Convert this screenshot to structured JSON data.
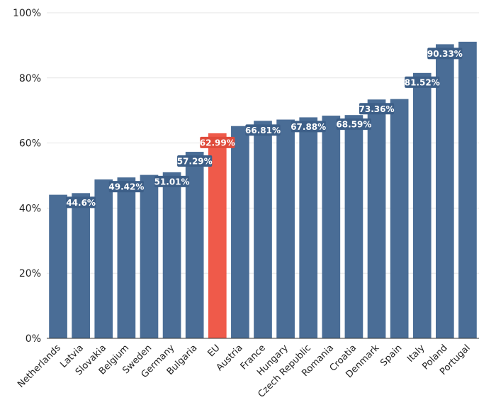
{
  "chart_data": {
    "type": "bar",
    "categories": [
      "Netherlands",
      "Latvia",
      "Slovakia",
      "Belgium",
      "Sweden",
      "Germany",
      "Bulgaria",
      "EU",
      "Austria",
      "France",
      "Hungary",
      "Czech Republic",
      "Romania",
      "Croatia",
      "Denmark",
      "Spain",
      "Italy",
      "Poland",
      "Portugal"
    ],
    "values": [
      44.1,
      44.6,
      48.8,
      49.42,
      50.2,
      51.01,
      57.29,
      62.99,
      65.2,
      66.81,
      67.2,
      67.88,
      68.4,
      68.59,
      73.36,
      73.5,
      81.52,
      90.33,
      91.1
    ],
    "data_labels": [
      "",
      "44.6%",
      "",
      "49.42%",
      "",
      "51.01%",
      "57.29%",
      "62.99%",
      "",
      "66.81%",
      "",
      "67.88%",
      "",
      "68.59%",
      "73.36%",
      "",
      "81.52%",
      "90.33%",
      ""
    ],
    "highlight": "EU",
    "ylim": [
      0,
      100
    ],
    "yticks": [
      0,
      20,
      40,
      60,
      80,
      100
    ],
    "ytick_labels": [
      "0%",
      "20%",
      "40%",
      "60%",
      "80%",
      "100%"
    ],
    "title": "",
    "xlabel": "",
    "ylabel": "",
    "grid": true,
    "legend": "none",
    "colors": {
      "bar": "#4a6d96",
      "highlight": "#ef5a4a",
      "label_bg": "#3d5f88",
      "label_bg_highlight": "#e04b3b",
      "grid": "#e6e6e6"
    }
  }
}
